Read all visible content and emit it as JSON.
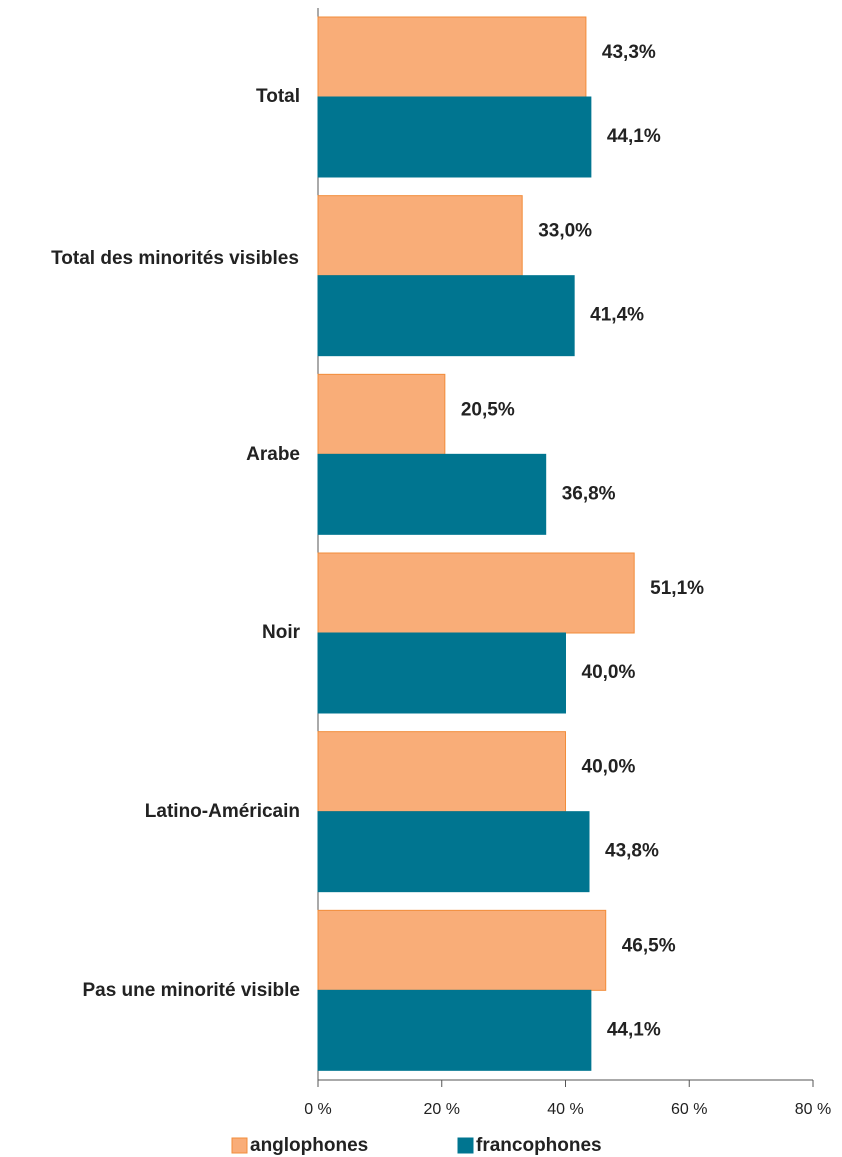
{
  "chart_data": {
    "type": "bar",
    "orientation": "horizontal",
    "categories": [
      "Total",
      "Total des minorités visibles",
      "Arabe",
      "Noir",
      "Latino-Américain",
      "Pas une minorité visible"
    ],
    "series": [
      {
        "name": "anglophones",
        "color": "#f9ad78",
        "edgecolor": "#f28c3a",
        "values": [
          43.3,
          33.0,
          20.5,
          51.1,
          40.0,
          46.5
        ],
        "value_labels": [
          "43,3%",
          "33,0%",
          "20,5%",
          "51,1%",
          "40,0%",
          "46,5%"
        ]
      },
      {
        "name": "francophones",
        "color": "#007590",
        "edgecolor": "#007590",
        "values": [
          44.1,
          41.4,
          36.8,
          40.0,
          43.8,
          44.1
        ],
        "value_labels": [
          "44,1%",
          "41,4%",
          "36,8%",
          "40,0%",
          "43,8%",
          "44,1%"
        ]
      }
    ],
    "xlim": [
      0,
      80
    ],
    "xticks": [
      {
        "value": 0,
        "label": "0 %"
      },
      {
        "value": 20,
        "label": "20 %"
      },
      {
        "value": 40,
        "label": "40 %"
      },
      {
        "value": 60,
        "label": "60 %"
      },
      {
        "value": 80,
        "label": "80 %"
      }
    ],
    "grid": false,
    "legend": "bottom"
  }
}
